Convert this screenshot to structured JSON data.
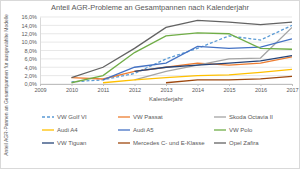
{
  "chart_data": {
    "type": "line",
    "title": "Anteil AGR-Probleme an Gesamtpannen nach Kalenderjahr",
    "x_label": "Kalenderjahr",
    "y_label": "Anteil AGR-Pannen an Gesamtpannen für ausgewählte Modelle",
    "x": [
      2009,
      2010,
      2011,
      2012,
      2013,
      2014,
      2015,
      2016,
      2017
    ],
    "xlim": [
      2009,
      2017
    ],
    "xticks": [
      2009,
      2010,
      2011,
      2012,
      2013,
      2014,
      2015,
      2016,
      2017
    ],
    "ylim": [
      0,
      16
    ],
    "yticks": [
      {
        "value": 0,
        "label": "0,0%"
      },
      {
        "value": 2,
        "label": "2,0%"
      },
      {
        "value": 4,
        "label": "4,0%"
      },
      {
        "value": 6,
        "label": "6,0%"
      },
      {
        "value": 8,
        "label": "8,0%"
      },
      {
        "value": 10,
        "label": "10,0%"
      },
      {
        "value": 12,
        "label": "12,0%"
      },
      {
        "value": 14,
        "label": "14,0%"
      },
      {
        "value": 16,
        "label": "16,0%"
      }
    ],
    "grid": true,
    "legend": "bottom",
    "series": [
      {
        "name": "VW Golf VI",
        "color": "#5b9bd5",
        "line_style": "dashed",
        "values": [
          null,
          0.5,
          1.0,
          2.5,
          6.0,
          8.5,
          11.5,
          10.5,
          14.0
        ]
      },
      {
        "name": "VW Passat",
        "color": "#ed7d31",
        "line_style": "solid",
        "values": [
          null,
          1.5,
          1.2,
          3.0,
          4.0,
          5.0,
          4.5,
          5.0,
          6.5
        ]
      },
      {
        "name": "Skoda Octavia II",
        "color": "#a5a5a5",
        "line_style": "solid",
        "values": [
          null,
          null,
          null,
          1.0,
          3.0,
          4.5,
          6.0,
          6.2,
          13.5
        ]
      },
      {
        "name": "Audi A4",
        "color": "#ffc000",
        "line_style": "solid",
        "values": [
          null,
          null,
          0.3,
          1.0,
          1.5,
          2.0,
          2.2,
          2.8,
          3.5
        ]
      },
      {
        "name": "Audi A5",
        "color": "#4472c4",
        "line_style": "solid",
        "values": [
          null,
          null,
          1.0,
          4.0,
          5.0,
          9.0,
          8.5,
          8.8,
          10.8
        ]
      },
      {
        "name": "VW Polo",
        "color": "#70ad47",
        "line_style": "solid",
        "values": [
          null,
          0.3,
          2.0,
          7.5,
          11.5,
          12.2,
          12.0,
          8.5,
          8.3
        ]
      },
      {
        "name": "VW Tiguan",
        "color": "#264478",
        "line_style": "solid",
        "values": [
          null,
          null,
          null,
          3.0,
          4.0,
          4.5,
          5.0,
          5.5,
          6.8
        ]
      },
      {
        "name": "Mercedes C- und E-Klasse",
        "color": "#9e480e",
        "line_style": "solid",
        "values": [
          null,
          null,
          null,
          null,
          0.3,
          1.0,
          1.0,
          1.2,
          1.8
        ]
      },
      {
        "name": "Opel Zafira",
        "color": "#636363",
        "line_style": "solid",
        "values": [
          null,
          1.5,
          4.0,
          8.5,
          13.5,
          15.2,
          14.8,
          14.2,
          14.8
        ]
      }
    ]
  }
}
